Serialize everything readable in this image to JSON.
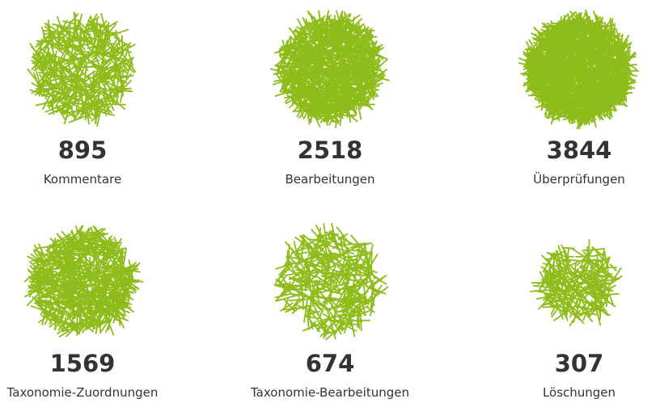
{
  "colors": {
    "accent": "#8ebc1a",
    "text": "#333333"
  },
  "stats": [
    {
      "value": "895",
      "label": "Kommentare"
    },
    {
      "value": "2518",
      "label": "Bearbeitungen"
    },
    {
      "value": "3844",
      "label": "Überprüfungen"
    },
    {
      "value": "1569",
      "label": "Taxonomie-Zuordnungen"
    },
    {
      "value": "674",
      "label": "Taxonomie-Bearbeitungen"
    },
    {
      "value": "307",
      "label": "Löschungen"
    }
  ]
}
